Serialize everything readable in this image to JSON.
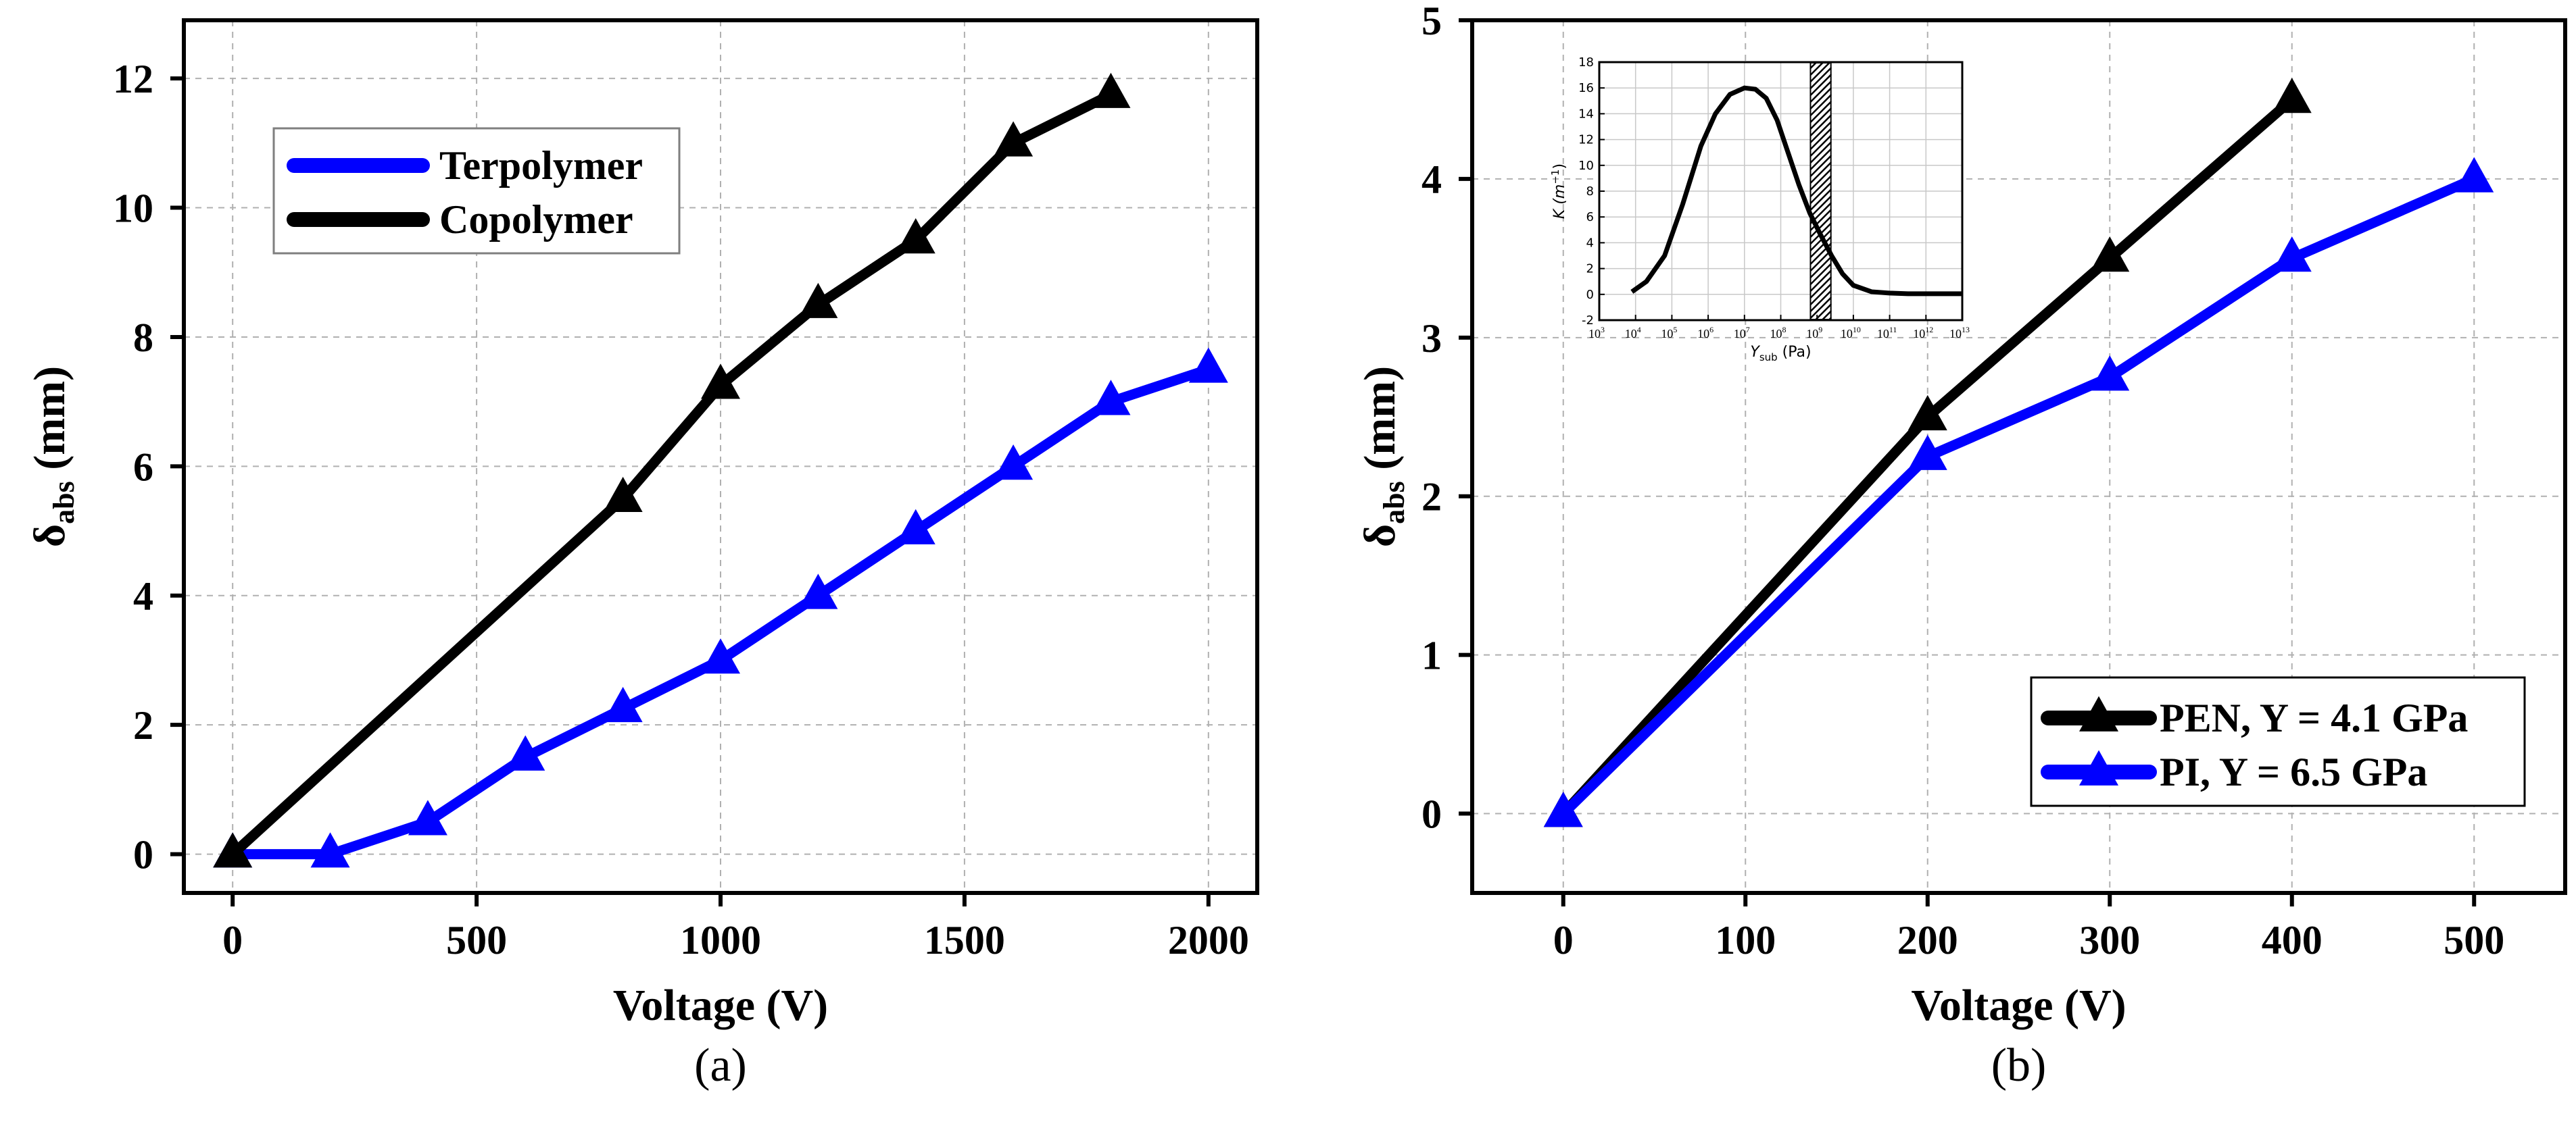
{
  "colors": {
    "series_black": "#000000",
    "series_blue": "#0000ff",
    "grid": "#b0b0b0",
    "axis": "#000000",
    "background": "#ffffff"
  },
  "chart_data": [
    {
      "panel_label": "(a)",
      "type": "line",
      "xlabel": "Voltage (V)",
      "ylabel_main": "δ",
      "ylabel_sub": "abs",
      "ylabel_unit": " (mm)",
      "xlim": [
        -100,
        2100
      ],
      "ylim": [
        -0.6,
        12.9
      ],
      "xticks": [
        0,
        500,
        1000,
        1500,
        2000
      ],
      "yticks": [
        0,
        2,
        4,
        6,
        8,
        10,
        12
      ],
      "grid": true,
      "legend_position": "top-left",
      "series": [
        {
          "name": "Terpolymer",
          "color": "#0000ff",
          "marker": "triangle",
          "x": [
            0,
            200,
            400,
            600,
            800,
            1000,
            1200,
            1400,
            1600,
            1800,
            2000
          ],
          "y": [
            0,
            0,
            0.5,
            1.5,
            2.25,
            3.0,
            4.0,
            5.0,
            6.0,
            7.0,
            7.5
          ]
        },
        {
          "name": "Copolymer",
          "color": "#000000",
          "marker": "triangle",
          "x": [
            0,
            800,
            1000,
            1200,
            1400,
            1600,
            1800
          ],
          "y": [
            0,
            5.5,
            7.25,
            8.5,
            9.5,
            11.0,
            11.75
          ]
        }
      ]
    },
    {
      "panel_label": "(b)",
      "type": "line",
      "xlabel": "Voltage (V)",
      "ylabel_main": "δ",
      "ylabel_sub": "abs",
      "ylabel_unit": " (mm)",
      "xlim": [
        -50,
        550
      ],
      "ylim": [
        -0.5,
        5
      ],
      "xticks": [
        0,
        100,
        200,
        300,
        400,
        500
      ],
      "yticks": [
        0,
        1,
        2,
        3,
        4,
        5
      ],
      "grid": true,
      "legend_position": "bottom-right",
      "series": [
        {
          "name": "PEN, Y = 4.1 GPa",
          "color": "#000000",
          "marker": "triangle",
          "x": [
            0,
            200,
            300,
            400
          ],
          "y": [
            0,
            2.5,
            3.5,
            4.5
          ]
        },
        {
          "name": "PI, Y = 6.5 GPa",
          "color": "#0000ff",
          "marker": "triangle",
          "x": [
            0,
            200,
            300,
            400,
            500
          ],
          "y": [
            0,
            2.25,
            2.75,
            3.5,
            4.0
          ]
        }
      ],
      "inset": {
        "type": "line",
        "ylabel": "K (m⁻¹)",
        "xlabel": "Ysub (Pa)",
        "ylabel_text": "K (m",
        "ylabel_sup": "−1",
        "ylabel_close": ")",
        "xlabel_text": "Y",
        "xlabel_sub": "sub",
        "xlabel_unit": " (Pa)",
        "xscale": "log",
        "xlim_exp": [
          3,
          13
        ],
        "ylim": [
          -2,
          18
        ],
        "yticks": [
          -2,
          0,
          2,
          4,
          6,
          8,
          10,
          12,
          14,
          16,
          18
        ],
        "xticks_exp": [
          3,
          4,
          5,
          6,
          7,
          8,
          9,
          10,
          11,
          12,
          13
        ],
        "x_tick_base": "10",
        "shaded_band_exp": [
          8.8,
          9.4
        ],
        "curve_log10x": [
          3.9,
          4.3,
          4.8,
          5.3,
          5.8,
          6.2,
          6.6,
          7.0,
          7.3,
          7.6,
          7.9,
          8.2,
          8.5,
          8.8,
          9.1,
          9.4,
          9.7,
          10.0,
          10.5,
          11.0,
          11.5,
          12.0,
          13.0
        ],
        "curve_y": [
          0.2,
          1.0,
          3.0,
          7.0,
          11.5,
          14.0,
          15.5,
          16.0,
          15.9,
          15.2,
          13.5,
          11.0,
          8.5,
          6.3,
          4.6,
          3.0,
          1.6,
          0.7,
          0.2,
          0.1,
          0.05,
          0.05,
          0.05
        ]
      }
    }
  ]
}
